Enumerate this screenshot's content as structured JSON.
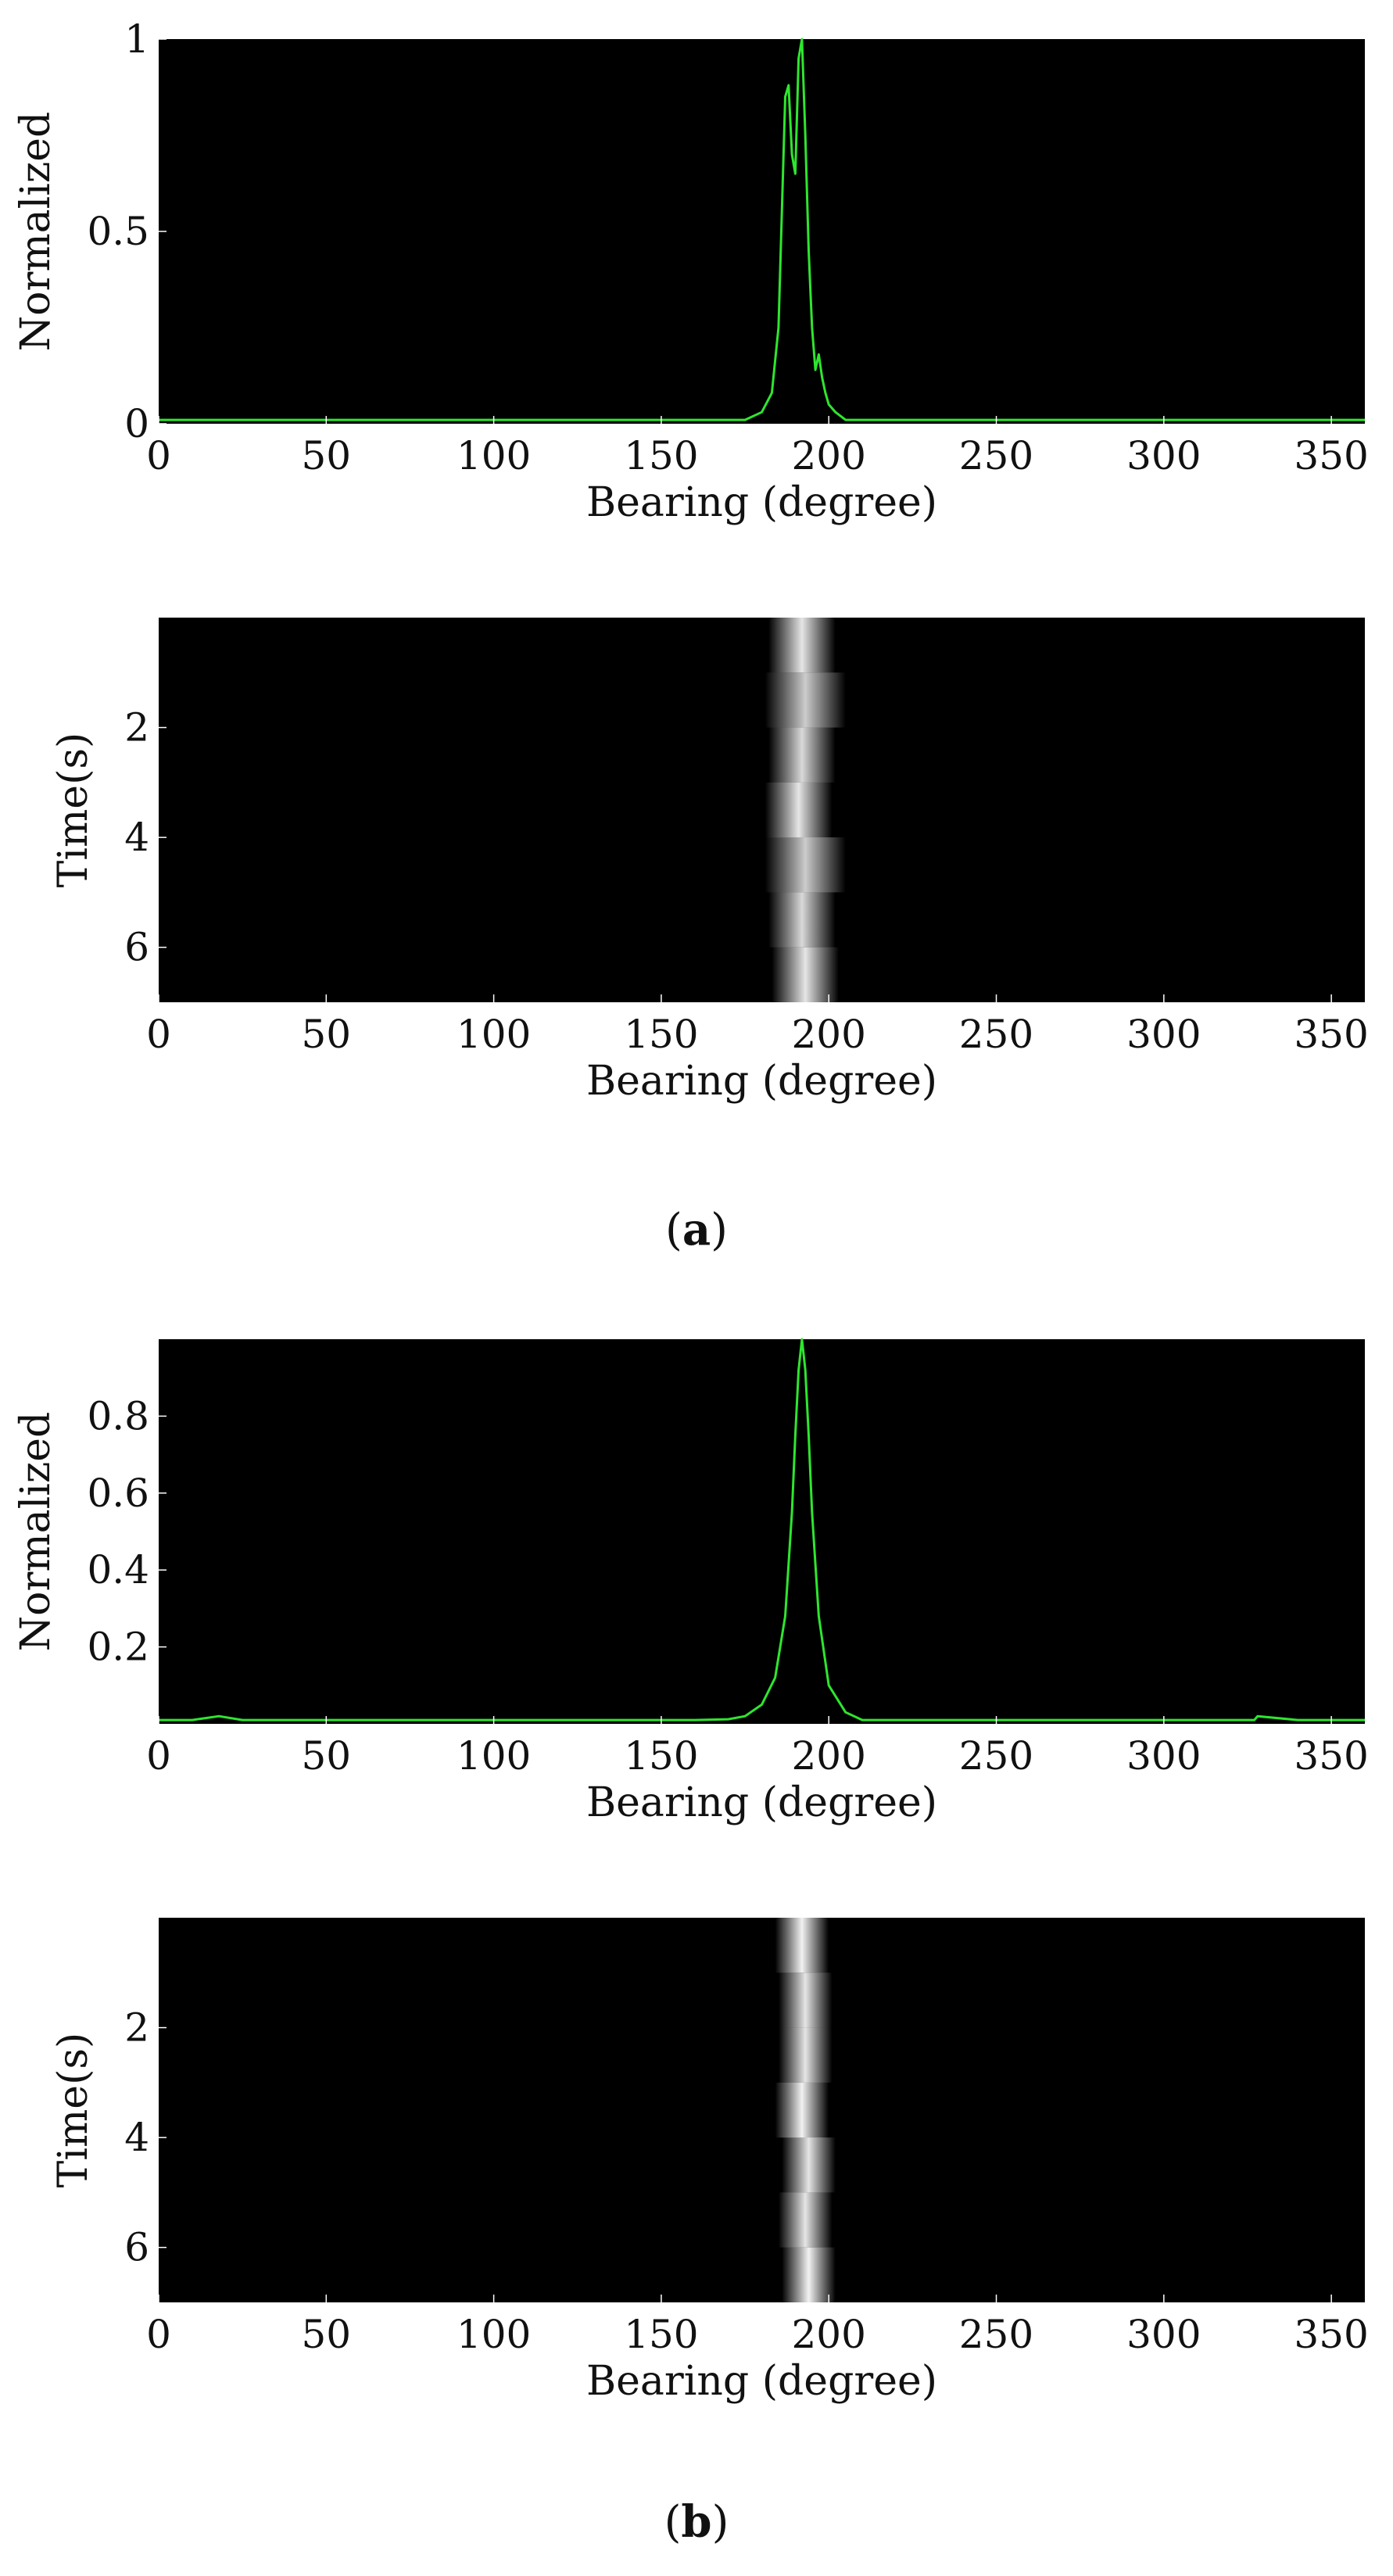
{
  "figure": {
    "caption_a": {
      "open": "(",
      "letter": "a",
      "close": ")"
    },
    "caption_b": {
      "open": "(",
      "letter": "b",
      "close": ")"
    }
  },
  "colors": {
    "plot_background": "#000000",
    "line": "#2ee62e",
    "trace": "#ffffff",
    "page_background": "#ffffff"
  },
  "chart_data": [
    {
      "id": "a-line",
      "type": "line",
      "xlabel": "Bearing (degree)",
      "ylabel": "Normalized",
      "xlim": [
        0,
        360
      ],
      "ylim": [
        0,
        1
      ],
      "xticks": [
        0,
        50,
        100,
        150,
        200,
        250,
        300,
        350
      ],
      "yticks": [
        0,
        0.5,
        1
      ],
      "yticklabels": [
        "0",
        "0.5",
        "1"
      ],
      "grid": false,
      "series": [
        {
          "x": [
            0,
            40,
            80,
            120,
            160,
            175,
            180,
            183,
            185,
            186,
            187,
            188,
            189,
            190,
            191,
            192,
            193,
            194,
            195,
            196,
            197,
            198,
            199,
            200,
            202,
            205,
            210,
            220,
            260,
            300,
            340,
            360
          ],
          "y": [
            0.01,
            0.01,
            0.01,
            0.01,
            0.01,
            0.01,
            0.03,
            0.08,
            0.25,
            0.55,
            0.85,
            0.88,
            0.7,
            0.65,
            0.95,
            1.0,
            0.75,
            0.45,
            0.25,
            0.14,
            0.18,
            0.12,
            0.08,
            0.05,
            0.03,
            0.01,
            0.01,
            0.01,
            0.01,
            0.01,
            0.01,
            0.01
          ]
        }
      ]
    },
    {
      "id": "a-trace",
      "type": "heatmap",
      "xlabel": "Bearing (degree)",
      "ylabel": "Time(s)",
      "xlim": [
        0,
        360
      ],
      "ylim": [
        7,
        0
      ],
      "xticks": [
        0,
        50,
        100,
        150,
        200,
        250,
        300,
        350
      ],
      "yticks": [
        2,
        4,
        6
      ],
      "yticklabels": [
        "2",
        "4",
        "6"
      ],
      "grid": false,
      "rows": [
        {
          "t0": 0,
          "t1": 1,
          "center": 192,
          "width": 5,
          "intensity": 0.9
        },
        {
          "t0": 1,
          "t1": 2,
          "center": 193,
          "width": 6,
          "intensity": 0.8
        },
        {
          "t0": 2,
          "t1": 3,
          "center": 192,
          "width": 5,
          "intensity": 0.85
        },
        {
          "t0": 3,
          "t1": 4,
          "center": 191,
          "width": 5,
          "intensity": 0.9
        },
        {
          "t0": 4,
          "t1": 5,
          "center": 193,
          "width": 6,
          "intensity": 0.8
        },
        {
          "t0": 5,
          "t1": 6,
          "center": 192,
          "width": 5,
          "intensity": 0.85
        },
        {
          "t0": 6,
          "t1": 7,
          "center": 193,
          "width": 5,
          "intensity": 0.9
        }
      ]
    },
    {
      "id": "b-line",
      "type": "line",
      "xlabel": "Bearing (degree)",
      "ylabel": "Normalized",
      "xlim": [
        0,
        360
      ],
      "ylim": [
        0,
        1
      ],
      "xticks": [
        0,
        50,
        100,
        150,
        200,
        250,
        300,
        350
      ],
      "yticks": [
        0.2,
        0.4,
        0.6,
        0.8
      ],
      "yticklabels": [
        "0.2",
        "0.4",
        "0.6",
        "0.8"
      ],
      "grid": false,
      "series": [
        {
          "x": [
            0,
            10,
            18,
            25,
            40,
            80,
            120,
            160,
            170,
            175,
            180,
            184,
            187,
            189,
            190,
            191,
            192,
            193,
            194,
            195,
            197,
            200,
            205,
            210,
            220,
            260,
            300,
            327,
            328,
            340,
            360
          ],
          "y": [
            0.01,
            0.01,
            0.02,
            0.01,
            0.01,
            0.01,
            0.01,
            0.01,
            0.012,
            0.02,
            0.05,
            0.12,
            0.28,
            0.55,
            0.75,
            0.92,
            1.0,
            0.92,
            0.75,
            0.55,
            0.28,
            0.1,
            0.03,
            0.01,
            0.01,
            0.01,
            0.01,
            0.01,
            0.02,
            0.01,
            0.01
          ]
        }
      ]
    },
    {
      "id": "b-trace",
      "type": "heatmap",
      "xlabel": "Bearing (degree)",
      "ylabel": "Time(s)",
      "xlim": [
        0,
        360
      ],
      "ylim": [
        7,
        0
      ],
      "xticks": [
        0,
        50,
        100,
        150,
        200,
        250,
        300,
        350
      ],
      "yticks": [
        2,
        4,
        6
      ],
      "yticklabels": [
        "2",
        "4",
        "6"
      ],
      "grid": false,
      "rows": [
        {
          "t0": 0,
          "t1": 1,
          "center": 192,
          "width": 4,
          "intensity": 0.95
        },
        {
          "t0": 1,
          "t1": 2,
          "center": 193,
          "width": 4,
          "intensity": 0.9
        },
        {
          "t0": 2,
          "t1": 3,
          "center": 193,
          "width": 4,
          "intensity": 0.9
        },
        {
          "t0": 3,
          "t1": 4,
          "center": 192,
          "width": 4,
          "intensity": 0.95
        },
        {
          "t0": 4,
          "t1": 5,
          "center": 194,
          "width": 4,
          "intensity": 0.9
        },
        {
          "t0": 5,
          "t1": 6,
          "center": 193,
          "width": 4,
          "intensity": 0.9
        },
        {
          "t0": 6,
          "t1": 7,
          "center": 194,
          "width": 4,
          "intensity": 0.95
        }
      ]
    }
  ]
}
